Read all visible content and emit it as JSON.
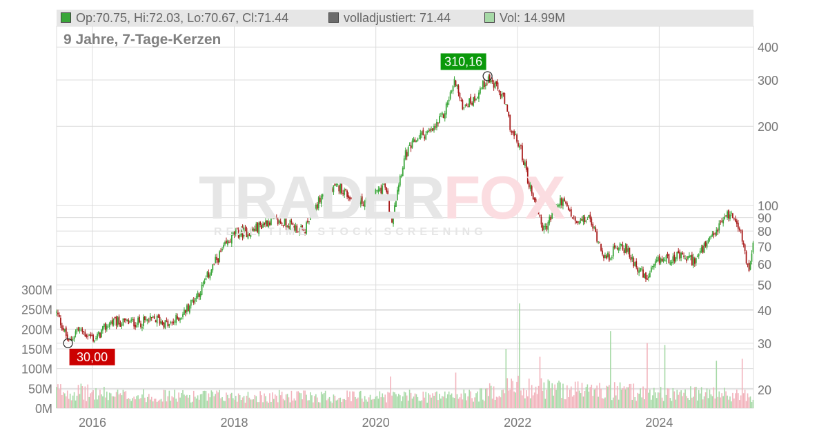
{
  "legend": {
    "ohlc": "Op:70.75, Hi:72.03, Lo:70.67, Cl:71.44",
    "adjusted": "volladjustiert: 71.44",
    "volume": "Vol: 14.99M"
  },
  "colors": {
    "up": "#3aa63a",
    "down": "#a81b1b",
    "vol_up": "#a6d9a6",
    "vol_down": "#f2b3bc",
    "adjusted_swatch": "#6b6b6b",
    "max_label_bg": "#0b990b",
    "min_label_bg": "#cc0000",
    "grid": "#dcdcdc"
  },
  "watermark": {
    "brand_part1": "TRADER",
    "brand_part2": "FOX",
    "tagline": "REAL TIME STOCK SCREENING"
  },
  "chart_data": {
    "type": "candlestick",
    "subtitle": "9 Jahre, 7-Tage-Kerzen",
    "price_axis": {
      "scale": "log",
      "range": [
        17,
        480
      ],
      "side": "right",
      "ticks": [
        20,
        30,
        40,
        50,
        60,
        70,
        80,
        90,
        100,
        200,
        300,
        400
      ]
    },
    "volume_axis": {
      "range": [
        0,
        300000000
      ],
      "side": "left",
      "ticks": [
        "0M",
        "50M",
        "100M",
        "150M",
        "200M",
        "250M",
        "300M"
      ],
      "tick_values": [
        0,
        50000000,
        100000000,
        150000000,
        200000000,
        250000000,
        300000000
      ]
    },
    "x_axis": {
      "range": [
        "2015-06-30",
        "2025-05-01"
      ],
      "ticks": [
        "2016",
        "2018",
        "2020",
        "2022",
        "2024"
      ]
    },
    "grid": true,
    "price_path": [
      [
        "2015-06-30",
        39
      ],
      [
        "2015-09-01",
        30
      ],
      [
        "2015-10-15",
        34
      ],
      [
        "2016-01-15",
        31
      ],
      [
        "2016-04-01",
        36
      ],
      [
        "2016-09-01",
        36
      ],
      [
        "2016-12-01",
        37
      ],
      [
        "2017-02-01",
        35
      ],
      [
        "2017-04-15",
        39
      ],
      [
        "2017-07-15",
        48
      ],
      [
        "2017-10-01",
        62
      ],
      [
        "2018-01-01",
        78
      ],
      [
        "2018-04-01",
        80
      ],
      [
        "2018-07-01",
        88
      ],
      [
        "2018-10-15",
        85
      ],
      [
        "2018-12-25",
        79
      ],
      [
        "2019-04-01",
        110
      ],
      [
        "2019-07-01",
        118
      ],
      [
        "2019-09-15",
        102
      ],
      [
        "2019-12-01",
        105
      ],
      [
        "2020-02-15",
        120
      ],
      [
        "2020-03-20",
        86
      ],
      [
        "2020-06-01",
        155
      ],
      [
        "2020-08-15",
        185
      ],
      [
        "2020-10-15",
        190
      ],
      [
        "2020-12-15",
        220
      ],
      [
        "2021-02-15",
        300
      ],
      [
        "2021-03-15",
        240
      ],
      [
        "2021-05-15",
        250
      ],
      [
        "2021-08-01",
        305
      ],
      [
        "2021-10-15",
        260
      ],
      [
        "2021-12-01",
        190
      ],
      [
        "2022-01-15",
        165
      ],
      [
        "2022-03-01",
        120
      ],
      [
        "2022-05-15",
        80
      ],
      [
        "2022-08-15",
        105
      ],
      [
        "2022-11-01",
        85
      ],
      [
        "2023-01-01",
        90
      ],
      [
        "2023-04-01",
        62
      ],
      [
        "2023-06-15",
        72
      ],
      [
        "2023-09-01",
        60
      ],
      [
        "2023-10-25",
        52
      ],
      [
        "2024-01-01",
        62
      ],
      [
        "2024-04-01",
        64
      ],
      [
        "2024-07-01",
        62
      ],
      [
        "2024-10-01",
        75
      ],
      [
        "2024-12-15",
        93
      ],
      [
        "2025-02-01",
        90
      ],
      [
        "2025-04-07",
        56
      ],
      [
        "2025-05-01",
        71
      ]
    ],
    "volume_path": [
      [
        "2015-06-30",
        45000000
      ],
      [
        "2016-06-01",
        32000000
      ],
      [
        "2018-01-01",
        30000000
      ],
      [
        "2020-01-01",
        30000000
      ],
      [
        "2021-06-01",
        32000000
      ],
      [
        "2021-12-01",
        55000000
      ],
      [
        "2022-06-01",
        50000000
      ],
      [
        "2024-01-01",
        38000000
      ],
      [
        "2025-05-01",
        32000000
      ]
    ],
    "volume_spikes": [
      [
        "2022-01-14",
        265000000
      ],
      [
        "2021-11-05",
        150000000
      ],
      [
        "2022-04-29",
        130000000
      ],
      [
        "2023-04-28",
        195000000
      ],
      [
        "2023-11-03",
        165000000
      ],
      [
        "2024-02-02",
        160000000
      ],
      [
        "2020-03-20",
        80000000
      ],
      [
        "2024-10-25",
        120000000
      ],
      [
        "2025-03-07",
        125000000
      ],
      [
        "2021-02-19",
        90000000
      ]
    ],
    "annotations": [
      {
        "label": "310,16",
        "date": "2021-07-30",
        "price": 310.16,
        "kind": "max"
      },
      {
        "label": "30,00",
        "date": "2015-08-28",
        "price": 30.0,
        "kind": "min"
      }
    ]
  }
}
